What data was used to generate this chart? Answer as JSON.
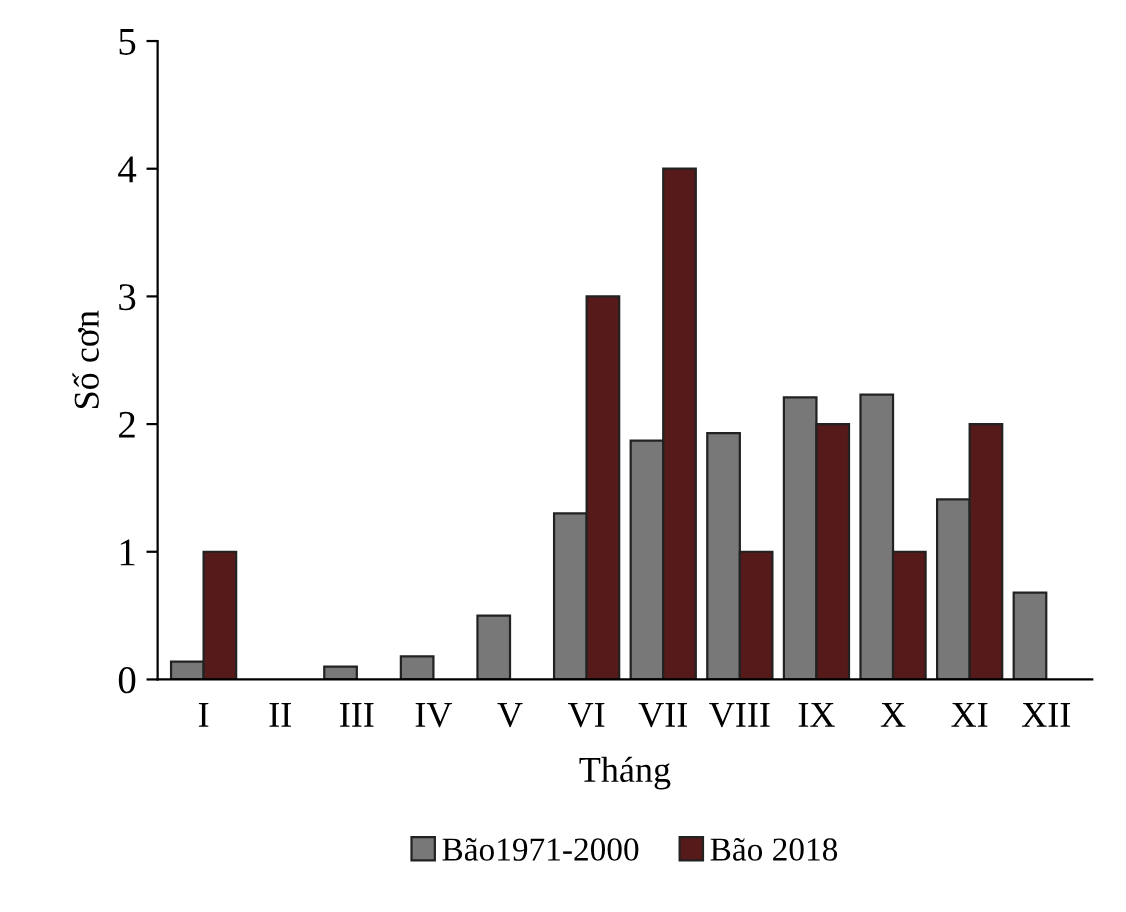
{
  "chart_data": {
    "type": "bar",
    "xlabel": "Tháng",
    "ylabel": "Số cơn",
    "categories": [
      "I",
      "II",
      "III",
      "IV",
      "V",
      "VI",
      "VII",
      "VIII",
      "IX",
      "X",
      "XI",
      "XII"
    ],
    "series": [
      {
        "name": "Bão1971-2000",
        "color": "#787878",
        "values": [
          0.14,
          0,
          0.1,
          0.18,
          0.5,
          1.3,
          1.87,
          1.93,
          2.21,
          2.23,
          1.41,
          0.68
        ]
      },
      {
        "name": "Bão 2018",
        "color": "#561a1a",
        "values": [
          1,
          0,
          0,
          0,
          0,
          3,
          4,
          1,
          2,
          1,
          2,
          0
        ]
      }
    ],
    "ylim": [
      0,
      5
    ],
    "yticks": [
      0,
      1,
      2,
      3,
      4,
      5
    ],
    "grid": false,
    "legend": "bottom"
  }
}
